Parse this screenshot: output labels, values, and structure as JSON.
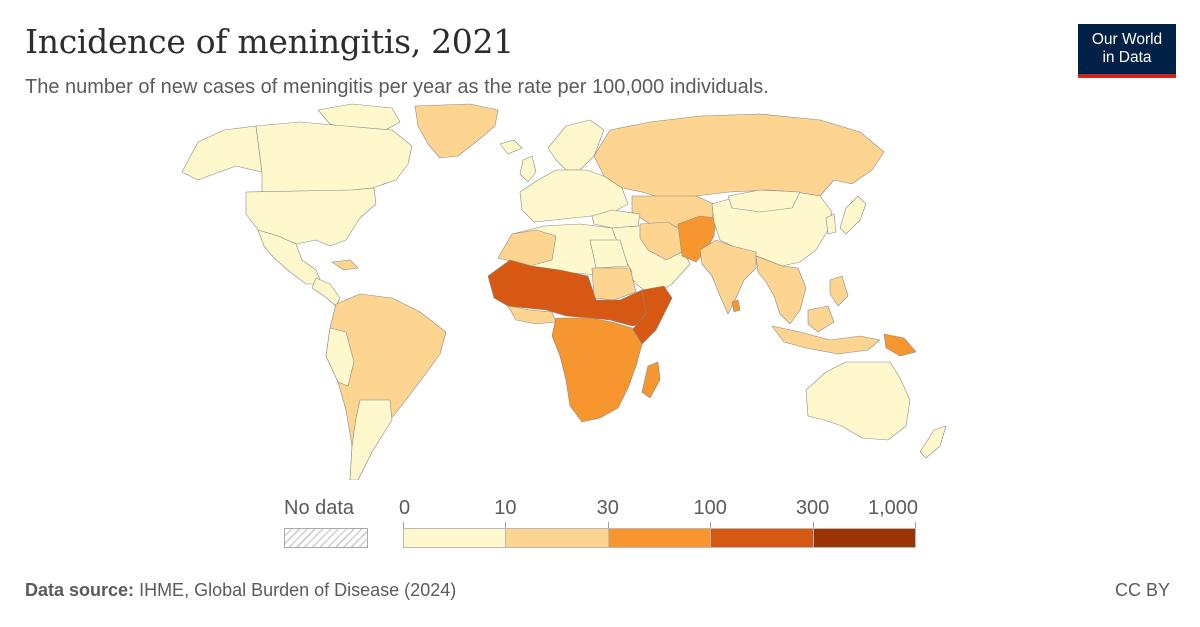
{
  "header": {
    "title": "Incidence of meningitis, 2021",
    "subtitle": "The number of new cases of meningitis per year as the rate per 100,000 individuals."
  },
  "logo": {
    "line1": "Our World",
    "line2": "in Data"
  },
  "legend": {
    "no_data_label": "No data",
    "ticks": [
      "0",
      "10",
      "30",
      "100",
      "300",
      "1,000"
    ],
    "bins": [
      {
        "from": 0,
        "to": 10,
        "color": "#fff8cc"
      },
      {
        "from": 10,
        "to": 30,
        "color": "#fdd591"
      },
      {
        "from": 30,
        "to": 100,
        "color": "#f7962e"
      },
      {
        "from": 100,
        "to": 300,
        "color": "#d75813"
      },
      {
        "from": 300,
        "to": 1000,
        "color": "#9a3405"
      }
    ]
  },
  "footer": {
    "source_label": "Data source:",
    "source_text": "IHME, Global Burden of Disease (2024)",
    "license": "CC BY"
  },
  "chart_data": {
    "type": "choropleth",
    "value_bins": [
      0,
      10,
      30,
      100,
      300,
      1000
    ],
    "regions": [
      {
        "region": "North America",
        "bin": [
          0,
          10
        ]
      },
      {
        "region": "Greenland",
        "bin": [
          10,
          30
        ]
      },
      {
        "region": "Central America & Caribbean",
        "bin": [
          0,
          10
        ]
      },
      {
        "region": "South America",
        "bin": [
          10,
          30
        ]
      },
      {
        "region": "Europe",
        "bin": [
          0,
          10
        ]
      },
      {
        "region": "Russia",
        "bin": [
          10,
          30
        ]
      },
      {
        "region": "Central Asia",
        "bin": [
          10,
          30
        ]
      },
      {
        "region": "North Africa",
        "bin": [
          0,
          10
        ]
      },
      {
        "region": "Middle East",
        "bin": [
          0,
          10
        ]
      },
      {
        "region": "Sahel belt",
        "bin": [
          100,
          300
        ]
      },
      {
        "region": "Central & Southern Africa",
        "bin": [
          30,
          100
        ]
      },
      {
        "region": "Pakistan & Afghanistan",
        "bin": [
          30,
          100
        ]
      },
      {
        "region": "India",
        "bin": [
          10,
          30
        ]
      },
      {
        "region": "China",
        "bin": [
          0,
          10
        ]
      },
      {
        "region": "Southeast Asia",
        "bin": [
          10,
          30
        ]
      },
      {
        "region": "Papua New Guinea",
        "bin": [
          30,
          100
        ]
      },
      {
        "region": "Australia",
        "bin": [
          0,
          10
        ]
      }
    ]
  }
}
